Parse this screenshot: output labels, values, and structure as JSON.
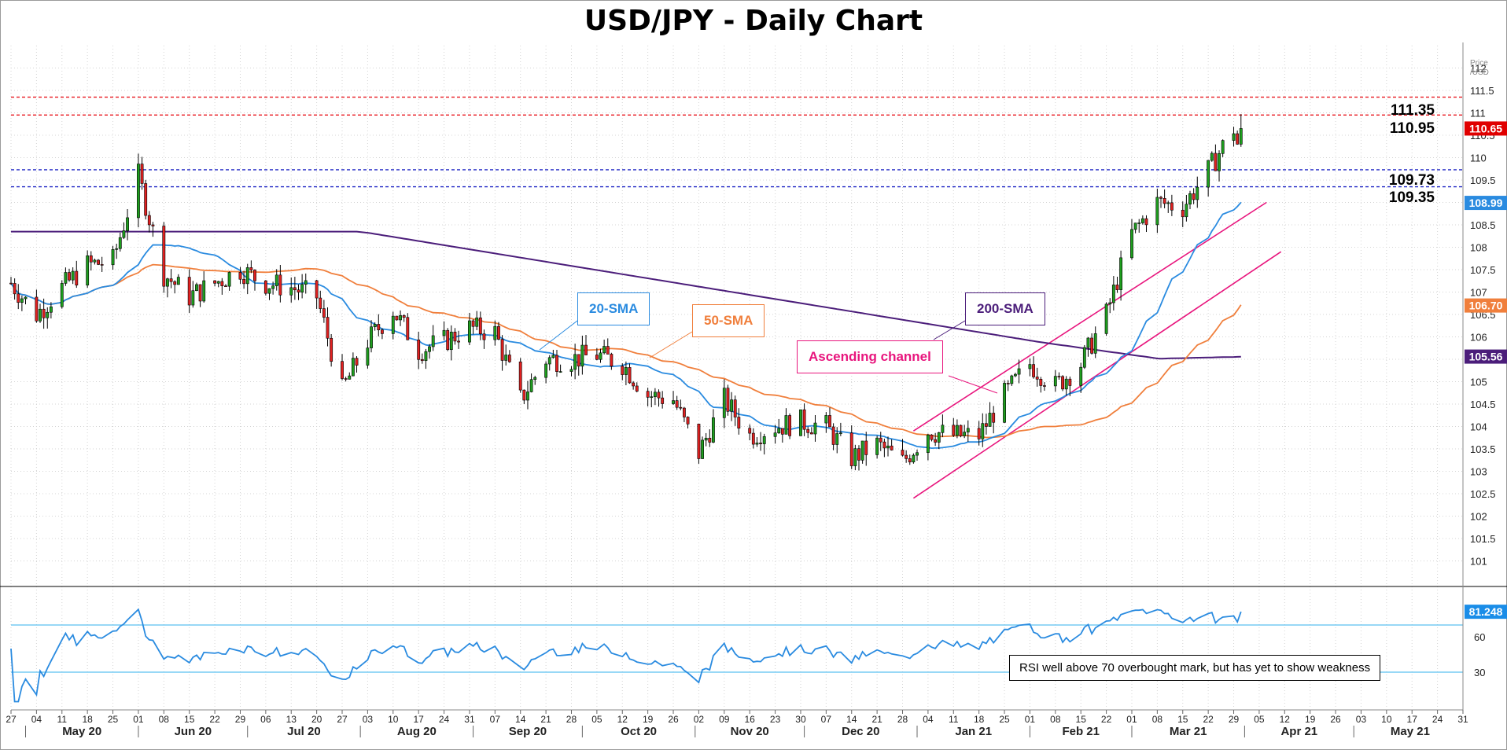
{
  "title": "USD/JPY - Daily Chart",
  "price_axis_label": [
    "Price",
    "/USD"
  ],
  "annotations": {
    "sma20": "20-SMA",
    "sma50": "50-SMA",
    "sma200": "200-SMA",
    "channel": "Ascending channel",
    "rsi_note": "RSI well above 70 overbought mark, but has yet to show weakness"
  },
  "level_labels": [
    "111.35",
    "110.95",
    "109.73",
    "109.35"
  ],
  "last_value_labels": {
    "price": "110.65",
    "sma20": "108.99",
    "sma50": "106.70",
    "sma200": "105.56",
    "rsi": "81.248"
  },
  "colors": {
    "up": "#1e9e1e",
    "down": "#e02020",
    "sma20": "#2a8be0",
    "sma50": "#f07f3c",
    "sma200": "#4b1d7a",
    "channel": "#e8157d",
    "resistance": "#e8161d",
    "support": "#1d24c4",
    "rsi": "#2a8be0",
    "rsi_levels": "#5bc0f0"
  },
  "chart_data": [
    {
      "type": "candlestick",
      "title": "USD/JPY - Daily Chart",
      "ylabel": "Price /USD",
      "ylim": [
        100.5,
        112.5
      ],
      "y_ticks": [
        "101",
        "101.5",
        "102",
        "102.5",
        "103",
        "103.5",
        "104",
        "104.5",
        "105",
        "105.5",
        "106",
        "106.5",
        "107",
        "107.5",
        "108",
        "108.5",
        "109",
        "109.5",
        "110",
        "110.5",
        "111",
        "111.5",
        "112"
      ],
      "x_ticks": [
        "27",
        "04",
        "11",
        "18",
        "25",
        "01",
        "08",
        "15",
        "22",
        "29",
        "06",
        "13",
        "20",
        "27",
        "03",
        "10",
        "17",
        "24",
        "31",
        "07",
        "14",
        "21",
        "28",
        "05",
        "12",
        "19",
        "26",
        "02",
        "09",
        "16",
        "23",
        "30",
        "07",
        "14",
        "21",
        "28",
        "04",
        "11",
        "18",
        "25",
        "01",
        "08",
        "15",
        "22",
        "01",
        "08",
        "15",
        "22",
        "29",
        "05",
        "12",
        "19",
        "26",
        "03",
        "10",
        "17",
        "24",
        "31"
      ],
      "months": [
        "May 20",
        "Jun 20",
        "Jul 20",
        "Aug 20",
        "Sep 20",
        "Oct 20",
        "Nov 20",
        "Dec 20",
        "Jan 21",
        "Feb 21",
        "Mar 21",
        "Apr 21",
        "May 21"
      ],
      "x_range": [
        "2020-04-27",
        "2021-05-31"
      ],
      "horizontal_levels": [
        {
          "value": 111.35,
          "style": "resistance"
        },
        {
          "value": 110.95,
          "style": "resistance"
        },
        {
          "value": 109.73,
          "style": "support"
        },
        {
          "value": 109.35,
          "style": "support"
        }
      ],
      "close_series": [
        [
          "2020-04-27",
          107.2
        ],
        [
          "2020-05-04",
          106.5
        ],
        [
          "2020-05-11",
          107.1
        ],
        [
          "2020-05-18",
          107.6
        ],
        [
          "2020-05-25",
          107.7
        ],
        [
          "2020-06-01",
          109.6
        ],
        [
          "2020-06-08",
          107.4
        ],
        [
          "2020-06-15",
          106.9
        ],
        [
          "2020-06-22",
          107.2
        ],
        [
          "2020-06-29",
          107.5
        ],
        [
          "2020-07-06",
          107.2
        ],
        [
          "2020-07-13",
          107.1
        ],
        [
          "2020-07-20",
          106.9
        ],
        [
          "2020-07-27",
          104.8
        ],
        [
          "2020-08-03",
          105.9
        ],
        [
          "2020-08-10",
          106.6
        ],
        [
          "2020-08-17",
          105.7
        ],
        [
          "2020-08-24",
          105.9
        ],
        [
          "2020-08-31",
          106.2
        ],
        [
          "2020-09-07",
          106.1
        ],
        [
          "2020-09-14",
          104.6
        ],
        [
          "2020-09-21",
          105.5
        ],
        [
          "2020-09-28",
          105.5
        ],
        [
          "2020-10-05",
          105.6
        ],
        [
          "2020-10-12",
          105.4
        ],
        [
          "2020-10-19",
          104.7
        ],
        [
          "2020-10-26",
          104.6
        ],
        [
          "2020-11-02",
          103.4
        ],
        [
          "2020-11-09",
          104.6
        ],
        [
          "2020-11-16",
          103.8
        ],
        [
          "2020-11-23",
          104.0
        ],
        [
          "2020-11-30",
          104.1
        ],
        [
          "2020-12-07",
          104.0
        ],
        [
          "2020-12-14",
          103.3
        ],
        [
          "2020-12-21",
          103.6
        ],
        [
          "2020-12-28",
          103.2
        ],
        [
          "2021-01-04",
          103.9
        ],
        [
          "2021-01-11",
          103.8
        ],
        [
          "2021-01-18",
          103.8
        ],
        [
          "2021-01-25",
          104.7
        ],
        [
          "2021-02-01",
          105.4
        ],
        [
          "2021-02-08",
          104.9
        ],
        [
          "2021-02-15",
          105.4
        ],
        [
          "2021-02-22",
          106.5
        ],
        [
          "2021-03-01",
          108.3
        ],
        [
          "2021-03-08",
          109.0
        ],
        [
          "2021-03-15",
          108.9
        ],
        [
          "2021-03-22",
          109.7
        ],
        [
          "2021-03-29",
          110.65
        ]
      ],
      "sma": [
        {
          "name": "20-SMA",
          "last": 108.99
        },
        {
          "name": "50-SMA",
          "last": 106.7
        },
        {
          "name": "200-SMA",
          "last": 105.56
        }
      ],
      "last_price": 110.65
    },
    {
      "type": "line",
      "series": [
        {
          "name": "RSI",
          "last": 81.248
        }
      ],
      "ylim": [
        0,
        100
      ],
      "reference_levels": [
        70,
        30
      ],
      "y_ticks": [
        "30",
        "60"
      ]
    }
  ]
}
